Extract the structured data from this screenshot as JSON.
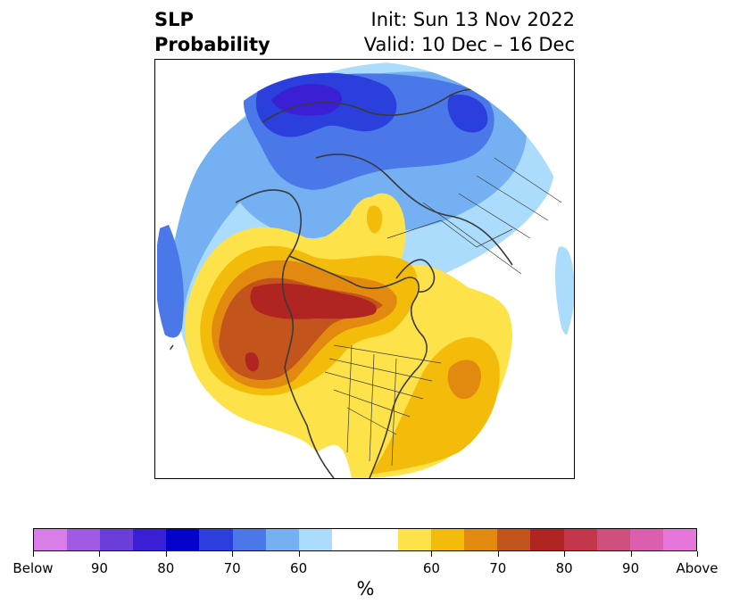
{
  "title": {
    "left_line1": "SLP",
    "left_line2": "Probability",
    "right_line1": "Init: Sun 13 Nov 2022",
    "right_line2": "Valid: 10 Dec – 16 Dec"
  },
  "map": {
    "projection": "north-polar-stereographic",
    "palette": {
      "below_90": "#3a1fd4",
      "below_80": "#2a3fdc",
      "below_70": "#4a78e8",
      "below_60": "#74b0f2",
      "below_50": "#acdcfc",
      "above_50": "#fde24a",
      "above_60": "#f3bb0a",
      "above_70": "#e2890f",
      "above_80": "#c2541c",
      "above_90": "#b02421",
      "coast": "#3a3a3a"
    }
  },
  "colorbar": {
    "segments": [
      "#d97de8",
      "#a05ae3",
      "#6c3ed9",
      "#3a1fd4",
      "#0303cc",
      "#2a3fdc",
      "#4a78e8",
      "#74b0f2",
      "#acdcfc",
      "#ffffff",
      "#ffffff",
      "#fde24a",
      "#f3bb0a",
      "#e2890f",
      "#c2541c",
      "#b02421",
      "#c4374a",
      "#cf4f7e",
      "#db5fae",
      "#e676dc"
    ],
    "tick_labels": [
      "Below",
      "90",
      "80",
      "70",
      "60",
      "60",
      "70",
      "80",
      "90",
      "Above"
    ],
    "unit": "%"
  }
}
